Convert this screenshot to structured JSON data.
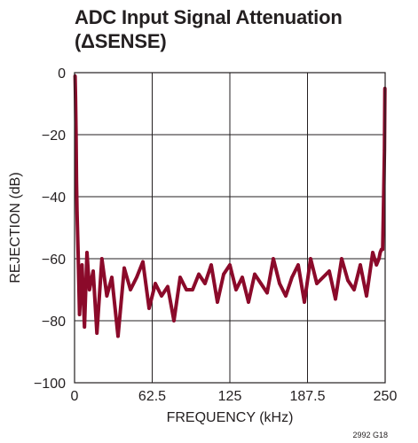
{
  "chart_data": {
    "type": "line",
    "title_lines": [
      "ADC Input Signal Attenuation",
      "(ΔSENSE)"
    ],
    "xlabel": "FREQUENCY (kHz)",
    "ylabel": "REJECTION (dB)",
    "xlim": [
      0,
      250
    ],
    "ylim": [
      -100,
      0
    ],
    "x_ticks": [
      0,
      62.5,
      125,
      187.5,
      250
    ],
    "x_tick_labels": [
      "0",
      "62.5",
      "125",
      "187.5",
      "250"
    ],
    "y_ticks": [
      0,
      -20,
      -40,
      -60,
      -80,
      -100
    ],
    "y_tick_labels": [
      "0",
      "−20",
      "−40",
      "−60",
      "−80",
      "−100"
    ],
    "grid": true,
    "line_color": "#8b0a2a",
    "note": "2992 G18",
    "series": [
      {
        "x": [
          0.4,
          0.8,
          1.2,
          1.6,
          2,
          3,
          4,
          6,
          8,
          10,
          12,
          15,
          18,
          22,
          26,
          30,
          35,
          40,
          45,
          50,
          55,
          60,
          65,
          70,
          75,
          80,
          85,
          90,
          95,
          100,
          105,
          110,
          115,
          120,
          125,
          130,
          135,
          140,
          145,
          150,
          155,
          160,
          165,
          170,
          175,
          180,
          185,
          190,
          195,
          200,
          205,
          210,
          215,
          220,
          225,
          230,
          235,
          240,
          243,
          245,
          246,
          247,
          248,
          248.8,
          249.4,
          249.8
        ],
        "y": [
          -1,
          -8,
          -20,
          -35,
          -45,
          -60,
          -78,
          -62,
          -82,
          -58,
          -70,
          -64,
          -84,
          -60,
          -72,
          -66,
          -85,
          -63,
          -70,
          -66,
          -61,
          -76,
          -68,
          -72,
          -69,
          -80,
          -66,
          -70,
          -70,
          -65,
          -68,
          -62,
          -74,
          -65,
          -62,
          -70,
          -66,
          -74,
          -65,
          -68,
          -71,
          -60,
          -68,
          -72,
          -66,
          -62,
          -74,
          -60,
          -68,
          -66,
          -64,
          -73,
          -60,
          -67,
          -70,
          -62,
          -72,
          -58,
          -62,
          -60,
          -58,
          -57,
          -57,
          -40,
          -25,
          -5
        ]
      }
    ]
  }
}
